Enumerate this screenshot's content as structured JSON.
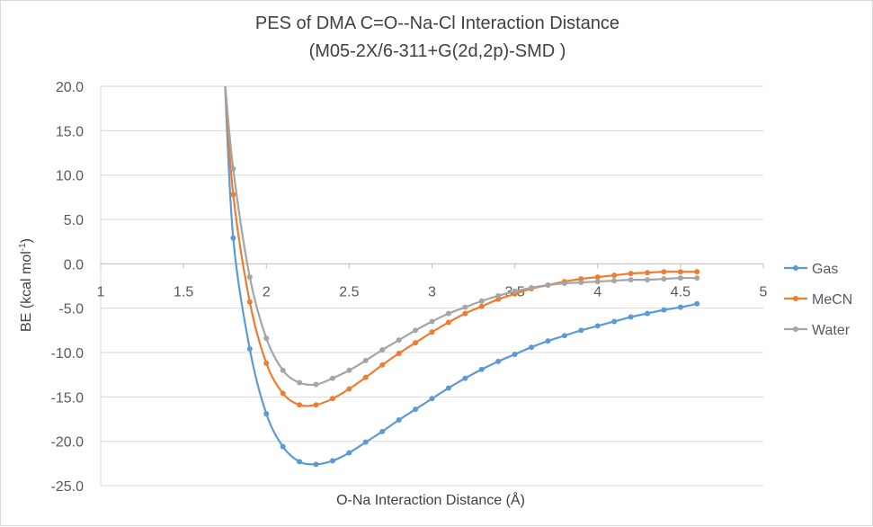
{
  "chart_data": {
    "type": "line",
    "title": "PES of DMA C=O--Na-Cl Interaction Distance",
    "subtitle": "(M05-2X/6-311+G(2d,2p)-SMD )",
    "xlabel": "O-Na Interaction Distance (Å)",
    "ylabel": "BE (kcal mol-1)",
    "ylabel_parts": {
      "pre": "BE (kcal mol",
      "sup": "-1",
      "post": ")"
    },
    "xlim": [
      1,
      5
    ],
    "ylim": [
      -25,
      20
    ],
    "x_ticks": [
      "1",
      "1.5",
      "2",
      "2.5",
      "3",
      "3.5",
      "4",
      "4.5",
      "5"
    ],
    "y_ticks": [
      "20.0",
      "15.0",
      "10.0",
      "5.0",
      "0.0",
      "-5.0",
      "-10.0",
      "-15.0",
      "-20.0",
      "-25.0"
    ],
    "grid": true,
    "legend_position": "right",
    "x": [
      1.75,
      1.8,
      1.9,
      2.0,
      2.1,
      2.2,
      2.3,
      2.4,
      2.5,
      2.6,
      2.7,
      2.8,
      2.9,
      3.0,
      3.1,
      3.2,
      3.3,
      3.4,
      3.5,
      3.6,
      3.7,
      3.8,
      3.9,
      4.0,
      4.1,
      4.2,
      4.3,
      4.4,
      4.5,
      4.6
    ],
    "series": [
      {
        "name": "Gas",
        "color": "#5b9bd5",
        "values": [
          20.5,
          2.9,
          -9.6,
          -16.9,
          -20.6,
          -22.3,
          -22.6,
          -22.2,
          -21.3,
          -20.1,
          -18.9,
          -17.6,
          -16.4,
          -15.2,
          -14.0,
          -12.9,
          -11.9,
          -11.0,
          -10.2,
          -9.4,
          -8.7,
          -8.1,
          -7.5,
          -7.0,
          -6.5,
          -6.0,
          -5.6,
          -5.2,
          -4.9,
          -4.5
        ]
      },
      {
        "name": "MeCN",
        "color": "#ed7d31",
        "values": [
          20.5,
          7.8,
          -4.3,
          -11.2,
          -14.6,
          -15.9,
          -15.9,
          -15.2,
          -14.1,
          -12.8,
          -11.4,
          -10.1,
          -8.9,
          -7.7,
          -6.6,
          -5.6,
          -4.8,
          -4.0,
          -3.4,
          -2.8,
          -2.4,
          -2.0,
          -1.7,
          -1.5,
          -1.3,
          -1.1,
          -1.0,
          -0.9,
          -0.9,
          -0.9
        ]
      },
      {
        "name": "Water",
        "color": "#a5a5a5",
        "values": [
          20.5,
          10.7,
          -1.5,
          -8.4,
          -12.0,
          -13.4,
          -13.6,
          -12.9,
          -12.0,
          -10.9,
          -9.7,
          -8.6,
          -7.5,
          -6.5,
          -5.6,
          -4.9,
          -4.2,
          -3.6,
          -3.1,
          -2.7,
          -2.4,
          -2.2,
          -2.1,
          -2.0,
          -1.9,
          -1.8,
          -1.8,
          -1.7,
          -1.6,
          -1.6
        ]
      }
    ]
  }
}
